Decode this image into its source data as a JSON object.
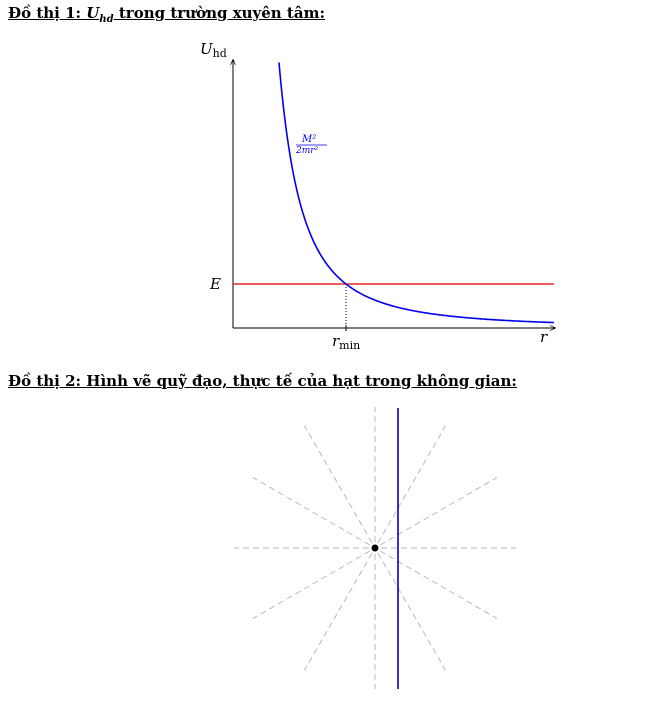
{
  "figure1": {
    "heading_prefix": "Đồ thị 1: ",
    "heading_math_base": "U",
    "heading_math_sub": "hd",
    "heading_suffix": " trong trường xuyên tâm:",
    "y_axis_label_base": "U",
    "y_axis_label_sub": "hd",
    "x_axis_label": "r",
    "energy_label": "E",
    "rmin_label_base": "r",
    "rmin_label_sub": "min",
    "curve_label_numerator": "M²",
    "curve_label_denominator": "2mr²",
    "colors": {
      "curve": "#0000ee",
      "energy_line": "#e8262b",
      "axis": "#000000"
    }
  },
  "figure2": {
    "heading": "Đồ thị 2: Hình vẽ quỹ đạo, thực tế của hạt trong không gian:",
    "colors": {
      "trajectory": "#0000cc",
      "guides": "#b8b8b8",
      "center": "#000000"
    }
  }
}
